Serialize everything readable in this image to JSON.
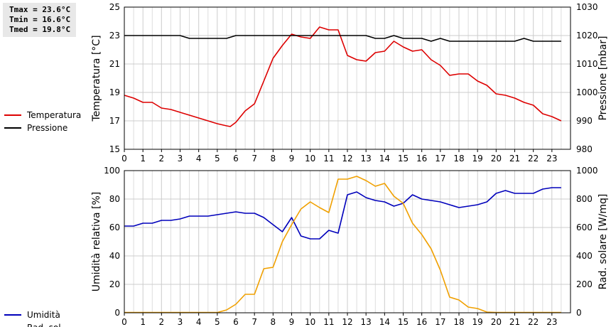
{
  "stats": {
    "tmax": "Tmax = 23.6°C",
    "tmin": "Tmin = 16.6°C",
    "tmed": "Tmed = 19.8°C"
  },
  "colors": {
    "temperature": "#dd0000",
    "pressure": "#000000",
    "humidity": "#0000bb",
    "radiation": "#f0a000"
  },
  "chart_data": [
    {
      "type": "line",
      "x_ticks": [
        "0",
        "1",
        "2",
        "3",
        "4",
        "5",
        "6",
        "7",
        "8",
        "9",
        "10",
        "11",
        "12",
        "13",
        "14",
        "15",
        "16",
        "17",
        "18",
        "19",
        "20",
        "21",
        "22",
        "23"
      ],
      "xlim": [
        0,
        24
      ],
      "ylabel_left": "Temperatura [°C]",
      "ylabel_right": "Pressione [mbar]",
      "ylim_left": [
        15,
        25
      ],
      "ylim_right": [
        980,
        1030
      ],
      "y_ticks_left": [
        "15",
        "17",
        "19",
        "21",
        "23",
        "25"
      ],
      "y_ticks_right": [
        "980",
        "990",
        "1000",
        "1010",
        "1020",
        "1030"
      ],
      "grid": true,
      "legend_position": "left",
      "series": [
        {
          "name": "Temperatura",
          "axis": "left",
          "color_key": "temperature",
          "x": [
            0,
            0.25,
            0.5,
            1,
            1.5,
            2,
            2.5,
            3,
            3.5,
            4,
            4.5,
            5,
            5.5,
            5.7,
            6,
            6.5,
            7,
            7.5,
            8,
            8.5,
            9,
            9.5,
            10,
            10.5,
            11,
            11.5,
            12,
            12.5,
            13,
            13.5,
            14,
            14.5,
            15,
            15.5,
            16,
            16.5,
            17,
            17.5,
            18,
            18.5,
            19,
            19.5,
            20,
            20.5,
            21,
            21.5,
            22,
            22.5,
            23,
            23.5
          ],
          "values": [
            18.8,
            18.7,
            18.6,
            18.3,
            18.3,
            17.9,
            17.8,
            17.6,
            17.4,
            17.2,
            17.0,
            16.8,
            16.65,
            16.6,
            16.9,
            17.7,
            18.2,
            19.8,
            21.4,
            22.3,
            23.1,
            22.9,
            22.8,
            23.6,
            23.4,
            23.4,
            21.6,
            21.3,
            21.2,
            21.8,
            21.9,
            22.6,
            22.2,
            21.9,
            22.0,
            21.3,
            20.9,
            20.2,
            20.3,
            20.3,
            19.8,
            19.5,
            18.9,
            18.8,
            18.6,
            18.3,
            18.1,
            17.5,
            17.3,
            17.0
          ]
        },
        {
          "name": "Pressione",
          "axis": "right",
          "color_key": "pressure",
          "x": [
            0,
            3,
            3.5,
            5.5,
            6,
            8,
            13,
            13.5,
            14,
            14.5,
            15,
            16,
            16.5,
            17,
            17.5,
            21,
            21.5,
            22,
            23.5
          ],
          "values": [
            1020,
            1020,
            1019,
            1019,
            1020,
            1020,
            1020,
            1019,
            1019,
            1020,
            1019,
            1019,
            1018,
            1019,
            1018,
            1018,
            1019,
            1018,
            1018
          ]
        }
      ]
    },
    {
      "type": "line",
      "x_ticks": [
        "0",
        "1",
        "2",
        "3",
        "4",
        "5",
        "6",
        "7",
        "8",
        "9",
        "10",
        "11",
        "12",
        "13",
        "14",
        "15",
        "16",
        "17",
        "18",
        "19",
        "20",
        "21",
        "22",
        "23"
      ],
      "xlim": [
        0,
        24
      ],
      "ylabel_left": "Umidità relativa [%]",
      "ylabel_right": "Rad. solare [W/mq]",
      "ylim_left": [
        0,
        100
      ],
      "ylim_right": [
        0,
        1000
      ],
      "y_ticks_left": [
        "0",
        "20",
        "40",
        "60",
        "80",
        "100"
      ],
      "y_ticks_right": [
        "0",
        "200",
        "400",
        "600",
        "800",
        "1000"
      ],
      "grid": true,
      "legend_position": "left",
      "series": [
        {
          "name": "Umidità",
          "axis": "left",
          "color_key": "humidity",
          "x": [
            0,
            0.5,
            1,
            1.5,
            2,
            2.5,
            3,
            3.5,
            4,
            4.5,
            5,
            5.5,
            6,
            6.5,
            7,
            7.5,
            8,
            8.5,
            9,
            9.5,
            10,
            10.5,
            11,
            11.5,
            12,
            12.5,
            13,
            13.5,
            14,
            14.5,
            15,
            15.5,
            16,
            16.5,
            17,
            17.5,
            18,
            18.5,
            19,
            19.5,
            20,
            20.5,
            21,
            21.5,
            22,
            22.5,
            23,
            23.5
          ],
          "values": [
            61,
            61,
            63,
            63,
            65,
            65,
            66,
            68,
            68,
            68,
            69,
            70,
            71,
            70,
            70,
            67,
            62,
            57,
            67,
            54,
            52,
            52,
            58,
            56,
            83,
            85,
            81,
            79,
            78,
            75,
            77,
            83,
            80,
            79,
            78,
            76,
            74,
            75,
            76,
            78,
            84,
            86,
            84,
            84,
            84,
            87,
            88,
            88
          ]
        },
        {
          "name": "Rad. sol.",
          "axis": "right",
          "color_key": "radiation",
          "x": [
            0,
            0.5,
            1,
            1.5,
            2,
            2.5,
            3,
            3.5,
            4,
            4.5,
            5,
            5.5,
            6,
            6.5,
            7,
            7.5,
            8,
            8.5,
            9,
            9.5,
            10,
            10.5,
            11,
            11.5,
            12,
            12.5,
            13,
            13.5,
            14,
            14.5,
            15,
            15.5,
            16,
            16.5,
            17,
            17.5,
            18,
            18.5,
            19,
            19.5,
            20,
            20.5,
            21,
            21.5,
            22,
            22.5,
            23,
            23.5
          ],
          "values": [
            2,
            2,
            2,
            2,
            2,
            2,
            2,
            2,
            2,
            2,
            2,
            20,
            60,
            130,
            130,
            310,
            320,
            500,
            620,
            730,
            780,
            740,
            705,
            940,
            940,
            960,
            930,
            890,
            910,
            820,
            770,
            630,
            550,
            450,
            300,
            110,
            90,
            40,
            30,
            5,
            2,
            2,
            2,
            2,
            2,
            2,
            2,
            2
          ]
        }
      ]
    }
  ]
}
